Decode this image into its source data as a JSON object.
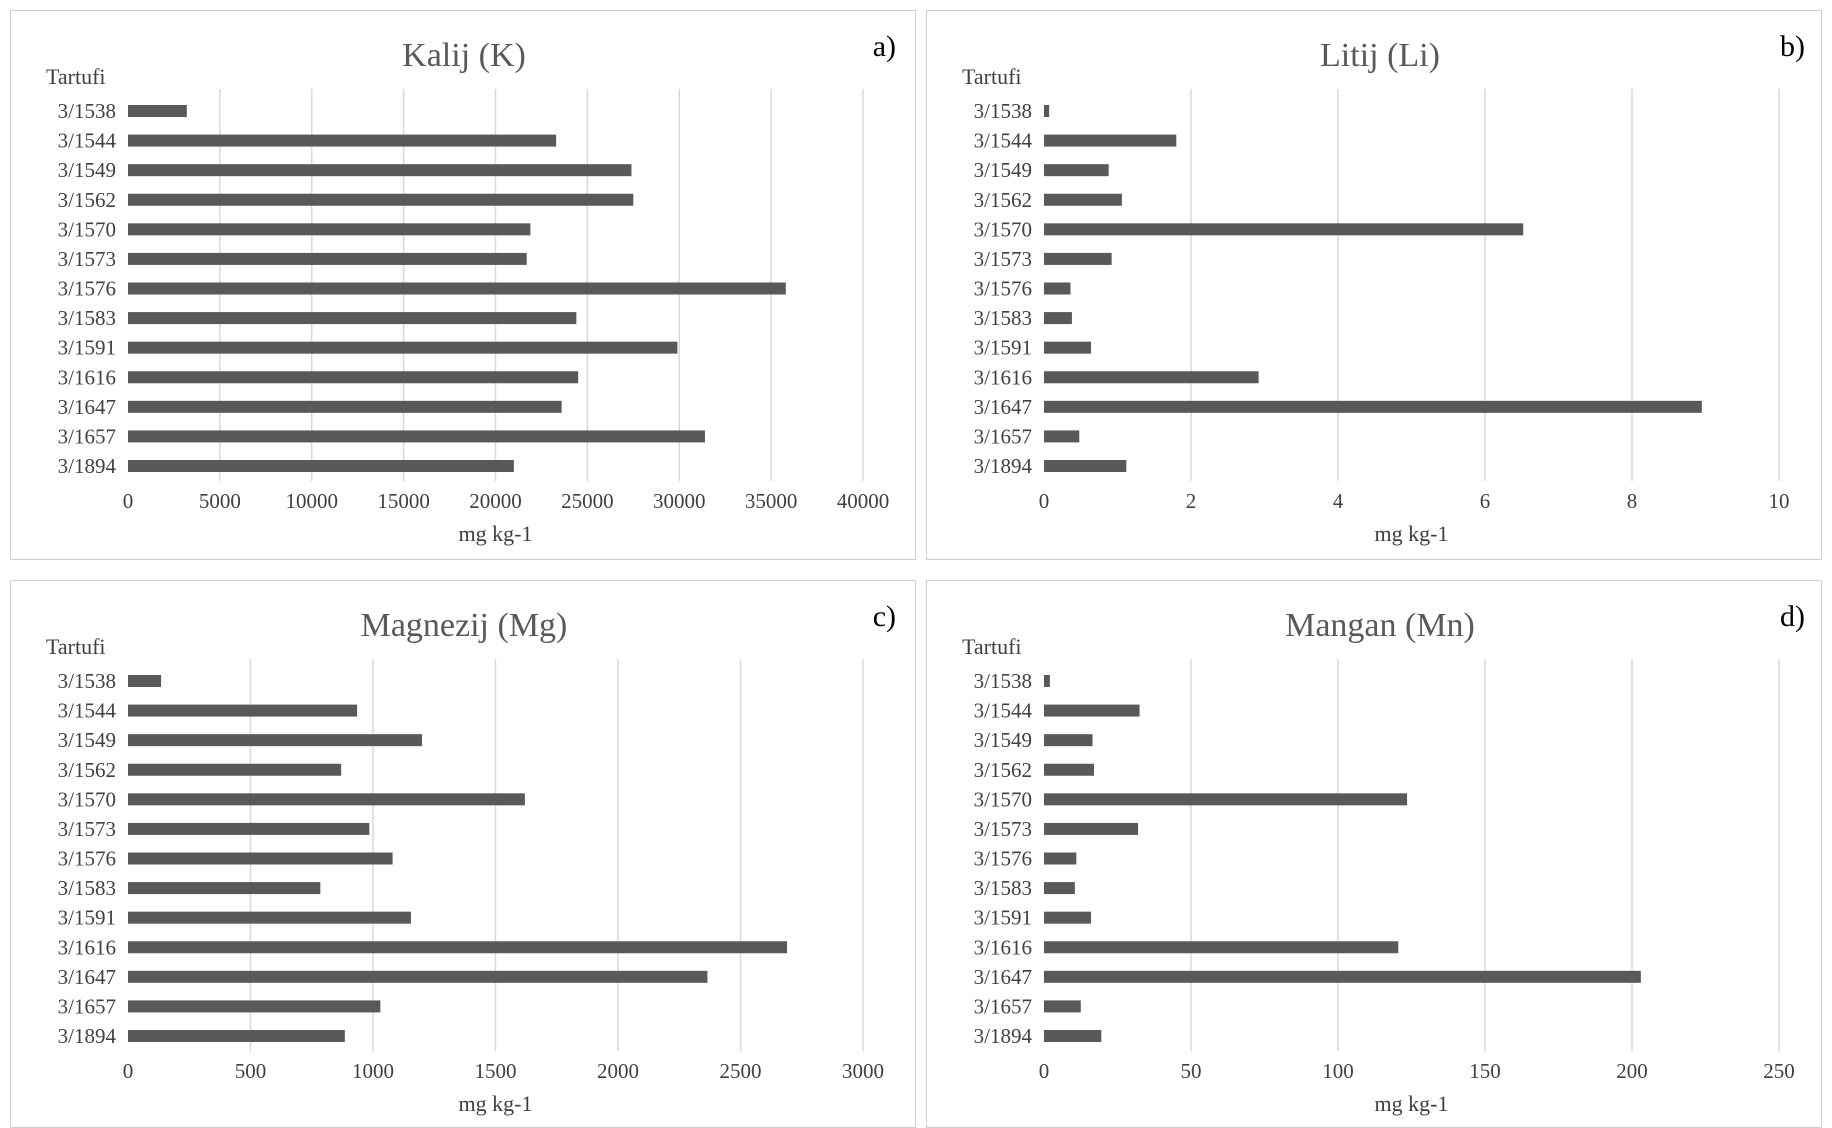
{
  "chart_data": [
    {
      "type": "bar",
      "orientation": "horizontal",
      "title": "Kalij (K)",
      "panel_label": "a)",
      "ylabel": "Tartufi",
      "xlabel": "mg kg-1",
      "categories": [
        "3/1538",
        "3/1544",
        "3/1549",
        "3/1562",
        "3/1570",
        "3/1573",
        "3/1576",
        "3/1583",
        "3/1591",
        "3/1616",
        "3/1647",
        "3/1657",
        "3/1894"
      ],
      "values": [
        3200,
        23300,
        27400,
        27500,
        21900,
        21700,
        35800,
        24400,
        29900,
        24500,
        23600,
        31400,
        21000
      ],
      "xlim": [
        0,
        40000
      ],
      "xticks": [
        0,
        5000,
        10000,
        15000,
        20000,
        25000,
        30000,
        35000,
        40000
      ],
      "xtick_labels": [
        "0",
        "5000",
        "10000",
        "15000",
        "20000",
        "25000",
        "30000",
        "35000",
        "40000"
      ],
      "grid": "vertical",
      "color": "#595959"
    },
    {
      "type": "bar",
      "orientation": "horizontal",
      "title": "Litij (Li)",
      "panel_label": "b)",
      "ylabel": "Tartufi",
      "xlabel": "mg kg-1",
      "categories": [
        "3/1538",
        "3/1544",
        "3/1549",
        "3/1562",
        "3/1570",
        "3/1573",
        "3/1576",
        "3/1583",
        "3/1591",
        "3/1616",
        "3/1647",
        "3/1657",
        "3/1894"
      ],
      "values": [
        0.07,
        1.8,
        0.88,
        1.06,
        6.52,
        0.92,
        0.36,
        0.38,
        0.64,
        2.92,
        8.95,
        0.48,
        1.12
      ],
      "xlim": [
        0,
        10
      ],
      "xticks": [
        0,
        2,
        4,
        6,
        8,
        10
      ],
      "xtick_labels": [
        "0",
        "2",
        "4",
        "6",
        "8",
        "10"
      ],
      "grid": "vertical",
      "color": "#595959"
    },
    {
      "type": "bar",
      "orientation": "horizontal",
      "title": "Magnezij (Mg)",
      "panel_label": "c)",
      "ylabel": "Tartufi",
      "xlabel": "mg kg-1",
      "categories": [
        "3/1538",
        "3/1544",
        "3/1549",
        "3/1562",
        "3/1570",
        "3/1573",
        "3/1576",
        "3/1583",
        "3/1591",
        "3/1616",
        "3/1647",
        "3/1657",
        "3/1894"
      ],
      "values": [
        135,
        935,
        1200,
        870,
        1620,
        985,
        1080,
        785,
        1155,
        2690,
        2365,
        1030,
        885
      ],
      "xlim": [
        0,
        3000
      ],
      "xticks": [
        0,
        500,
        1000,
        1500,
        2000,
        2500,
        3000
      ],
      "xtick_labels": [
        "0",
        "500",
        "1000",
        "1500",
        "2000",
        "2500",
        "3000"
      ],
      "grid": "vertical",
      "color": "#595959"
    },
    {
      "type": "bar",
      "orientation": "horizontal",
      "title": "Mangan (Mn)",
      "panel_label": "d)",
      "ylabel": "Tartufi",
      "xlabel": "mg kg-1",
      "categories": [
        "3/1538",
        "3/1544",
        "3/1549",
        "3/1562",
        "3/1570",
        "3/1573",
        "3/1576",
        "3/1583",
        "3/1591",
        "3/1616",
        "3/1647",
        "3/1657",
        "3/1894"
      ],
      "values": [
        2,
        32.5,
        16.5,
        17,
        123.5,
        32,
        11,
        10.5,
        16,
        120.5,
        203,
        12.5,
        19.5
      ],
      "xlim": [
        0,
        250
      ],
      "xticks": [
        0,
        50,
        100,
        150,
        200,
        250
      ],
      "xtick_labels": [
        "0",
        "50",
        "100",
        "150",
        "200",
        "250"
      ],
      "grid": "vertical",
      "color": "#595959"
    }
  ]
}
